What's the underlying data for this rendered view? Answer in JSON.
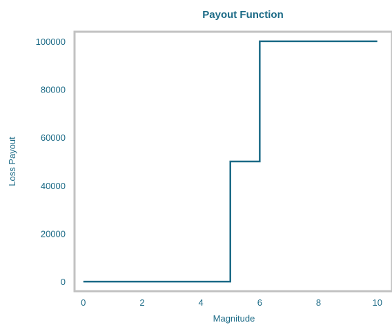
{
  "chart_data": {
    "type": "line",
    "title": "Payout Function",
    "xlabel": "Magnitude",
    "ylabel": "Loss Payout",
    "xlim": [
      -0.3,
      10.5
    ],
    "ylim": [
      -4000,
      104000
    ],
    "xticks": [
      0,
      2,
      4,
      6,
      8,
      10
    ],
    "yticks": [
      0,
      20000,
      40000,
      60000,
      80000,
      100000
    ],
    "step_style": "step",
    "grid": false,
    "legend": "none",
    "series": [
      {
        "x": [
          0,
          5,
          5,
          6,
          6,
          10
        ],
        "y": [
          0,
          0,
          50000,
          50000,
          100000,
          100000
        ]
      }
    ]
  },
  "colors": {
    "line": "#1b6a86",
    "text": "#1b6a86",
    "frame": "#c2c2c2"
  }
}
